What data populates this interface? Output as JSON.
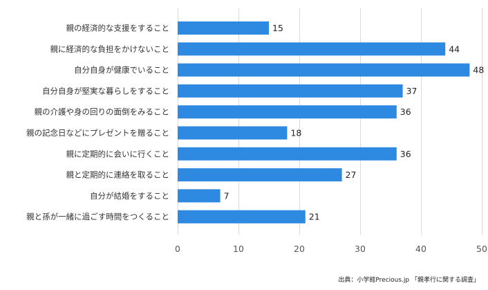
{
  "chart_data": {
    "type": "bar",
    "orientation": "horizontal",
    "categories": [
      "親の経済的な支援をすること",
      "親に経済的な負担をかけないこと",
      "自分自身が健康でいること",
      "自分自身が堅実な暮らしをすること",
      "親の介護や身の回りの面倒をみること",
      "親の記念日などにプレゼントを贈ること",
      "親に定期的に会いに行くこと",
      "親と定期的に連絡を取ること",
      "自分が結婚をすること",
      "親と孫が一緒に過ごす時間をつくること"
    ],
    "values": [
      15,
      44,
      48,
      37,
      36,
      18,
      36,
      27,
      7,
      21
    ],
    "xlim": [
      0,
      50
    ],
    "xticks": [
      0,
      10,
      20,
      30,
      40,
      50
    ],
    "grid": true,
    "bar_color": "#2e8ae0",
    "grid_color": "#d9d9d9"
  },
  "source": "出典：小学館Precious.jp 「親孝行に関する調査」"
}
